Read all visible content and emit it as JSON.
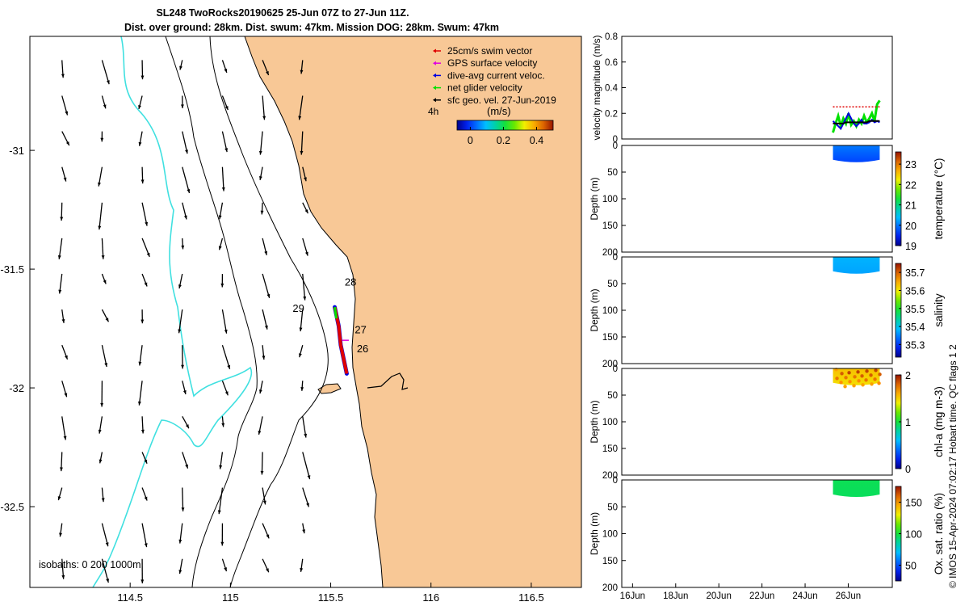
{
  "header": {
    "title_line1": "SL248 TwoRocks20190625 25-Jun 07Z to 27-Jun 11Z.",
    "title_line2": "Dist. over ground: 28km. Dist. swum: 47km. Mission DOG: 28km. Swum: 47km"
  },
  "footer": {
    "credit": "© IMOS 15-Apr-2024 07:02:17 Hobart time. QC flags 1  2"
  },
  "colors": {
    "land": "#f8c896",
    "sea": "#ffffff",
    "isobath_shallow": "#40e0e0",
    "track_swim": "#e00000",
    "gps_velocity": "#e000e0",
    "dive_current": "#0000e0",
    "net_velocity": "#00e000",
    "geo_vector": "#000000"
  },
  "chart_data": [
    {
      "type": "map",
      "xlim": [
        114.0,
        116.75
      ],
      "ylim": [
        -32.84,
        -30.52
      ],
      "xticks": [
        "114.5",
        "115",
        "115.5",
        "116",
        "116.5"
      ],
      "xtick_values": [
        114.5,
        115.0,
        115.5,
        116.0,
        116.5
      ],
      "yticks": [
        "-31",
        "-31.5",
        "-32",
        "-32.5"
      ],
      "ytick_values": [
        -31.0,
        -31.5,
        -32.0,
        -32.5
      ],
      "legend": {
        "entries": [
          {
            "label": "25cm/s swim vector",
            "color": "#e00000"
          },
          {
            "label": "GPS surface velocity",
            "color": "#e000e0"
          },
          {
            "label": "dive-avg current veloc.",
            "color": "#0000e0"
          },
          {
            "label": "net glider velocity",
            "color": "#00e000"
          },
          {
            "label": "sfc geo. vel. 27-Jun-2019",
            "color": "#000000"
          }
        ],
        "placement": "top-right"
      },
      "scale_label": "4h",
      "colorbar": {
        "label": "(m/s)",
        "ticks": [
          "0",
          "0.2",
          "0.4"
        ],
        "tick_values": [
          0,
          0.2,
          0.4
        ],
        "range": [
          -0.08,
          0.5
        ]
      },
      "isobaths_label": "isobaths: 0   200  1000m",
      "day_labels": [
        {
          "text": "28",
          "lon": 115.57,
          "lat": -31.57
        },
        {
          "text": "29",
          "lon": 115.31,
          "lat": -31.68
        },
        {
          "text": "27",
          "lon": 115.62,
          "lat": -31.77
        },
        {
          "text": "26",
          "lon": 115.63,
          "lat": -31.85
        }
      ],
      "glider_track": [
        [
          115.52,
          -31.66
        ],
        [
          115.54,
          -31.74
        ],
        [
          115.55,
          -31.82
        ],
        [
          115.57,
          -31.9
        ],
        [
          115.58,
          -31.94
        ]
      ],
      "vector_field": {
        "lons": [
          114.16,
          114.36,
          114.56,
          114.76,
          114.96,
          115.16,
          115.36
        ],
        "lats": [
          -30.62,
          -30.77,
          -30.92,
          -31.07,
          -31.22,
          -31.37,
          -31.52,
          -31.67,
          -31.82,
          -31.97,
          -32.12,
          -32.27,
          -32.42,
          -32.57,
          -32.72
        ],
        "note": "surface geostrophic velocity vectors, mostly southward"
      }
    },
    {
      "type": "line",
      "ylabel": "velocity magnitude (m/s)",
      "ylim": [
        0,
        0.8
      ],
      "yticks": [
        "0",
        "0.2",
        "0.4",
        "0.6",
        "0.8"
      ],
      "ytick_values": [
        0,
        0.2,
        0.4,
        0.6,
        0.8
      ],
      "x_start": "2019-06-25T07",
      "x_end": "2019-06-27T11",
      "series": [
        {
          "color": "#00e000",
          "values": [
            0.05,
            0.12,
            0.18,
            0.1,
            0.16,
            0.12,
            0.2,
            0.11,
            0.14,
            0.1,
            0.15,
            0.12,
            0.18,
            0.13,
            0.16,
            0.2,
            0.14,
            0.27,
            0.3
          ]
        },
        {
          "color": "#0000e0",
          "values": [
            0.14,
            0.12,
            0.1,
            0.08,
            0.12,
            0.16,
            0.2,
            0.16,
            0.12,
            0.1,
            0.12,
            0.15,
            0.12,
            0.12,
            0.13,
            0.15,
            0.13,
            0.14,
            0.13
          ]
        },
        {
          "color": "#000000",
          "values": [
            0.12,
            0.12,
            0.12,
            0.12,
            0.12,
            0.13,
            0.13,
            0.13,
            0.13,
            0.13,
            0.13,
            0.13,
            0.13,
            0.13,
            0.14,
            0.14,
            0.14,
            0.14,
            0.14
          ]
        },
        {
          "color": "#e00000",
          "values": [
            0.25,
            0.25,
            0.25,
            0.25,
            0.25,
            0.25,
            0.25,
            0.25,
            0.25,
            0.25,
            0.25,
            0.25,
            0.25,
            0.25,
            0.25,
            0.25,
            0.25,
            0.25,
            0.25
          ]
        }
      ]
    },
    {
      "type": "heatmap",
      "ylabel": "Depth (m)",
      "colorbar_label": "temperature (°C)",
      "ylim": [
        0,
        200
      ],
      "yticks": [
        "0",
        "50",
        "100",
        "150",
        "200"
      ],
      "ytick_values": [
        0,
        50,
        100,
        150,
        200
      ],
      "cbar_range": [
        19,
        23.6
      ],
      "cbar_ticks": [
        "19",
        "20",
        "21",
        "22",
        "23"
      ],
      "cbar_tick_values": [
        19,
        20,
        21,
        22,
        23
      ],
      "depth_max": 30,
      "value_surface": 20.0,
      "value_bottom": 19.7,
      "x_start": "2019-06-25T07",
      "x_end": "2019-06-27T11"
    },
    {
      "type": "heatmap",
      "ylabel": "Depth (m)",
      "colorbar_label": "salinity",
      "ylim": [
        0,
        200
      ],
      "yticks": [
        "0",
        "50",
        "100",
        "150",
        "200"
      ],
      "ytick_values": [
        0,
        50,
        100,
        150,
        200
      ],
      "cbar_range": [
        35.23,
        35.75
      ],
      "cbar_ticks": [
        "35.3",
        "35.4",
        "35.5",
        "35.6",
        "35.7"
      ],
      "cbar_tick_values": [
        35.3,
        35.4,
        35.5,
        35.6,
        35.7
      ],
      "depth_max": 30,
      "value_surface": 35.38,
      "value_bottom": 35.37,
      "x_start": "2019-06-25T07",
      "x_end": "2019-06-27T11"
    },
    {
      "type": "heatmap",
      "ylabel": "Depth (m)",
      "colorbar_label": "chl-a (mg m-3)",
      "ylim": [
        0,
        200
      ],
      "yticks": [
        "0",
        "50",
        "100",
        "150",
        "200"
      ],
      "ytick_values": [
        0,
        50,
        100,
        150,
        200
      ],
      "cbar_range": [
        0,
        2
      ],
      "cbar_ticks": [
        "0",
        "1",
        "2"
      ],
      "cbar_tick_values": [
        0,
        1,
        2
      ],
      "depth_max": 30,
      "value_surface": 1.55,
      "value_bottom": 1.45,
      "x_start": "2019-06-25T07",
      "x_end": "2019-06-27T11"
    },
    {
      "type": "heatmap",
      "ylabel": "Depth (m)",
      "colorbar_label": "Ox. sat. ratio (%)",
      "ylim": [
        0,
        200
      ],
      "yticks": [
        "0",
        "50",
        "100",
        "150",
        "200"
      ],
      "ytick_values": [
        0,
        50,
        100,
        150,
        200
      ],
      "cbar_range": [
        25,
        175
      ],
      "cbar_ticks": [
        "50",
        "100",
        "150"
      ],
      "cbar_tick_values": [
        50,
        100,
        150
      ],
      "depth_max": 30,
      "value_surface": 97,
      "value_bottom": 96,
      "x_start": "2019-06-25T07",
      "x_end": "2019-06-27T11",
      "xticks": [
        "16Jun",
        "18Jun",
        "20Jun",
        "22Jun",
        "24Jun",
        "26Jun"
      ],
      "xtick_values": [
        "2019-06-16",
        "2019-06-18",
        "2019-06-20",
        "2019-06-22",
        "2019-06-24",
        "2019-06-26"
      ],
      "xlim": [
        "2019-06-15T12",
        "2019-06-28T01"
      ]
    }
  ]
}
